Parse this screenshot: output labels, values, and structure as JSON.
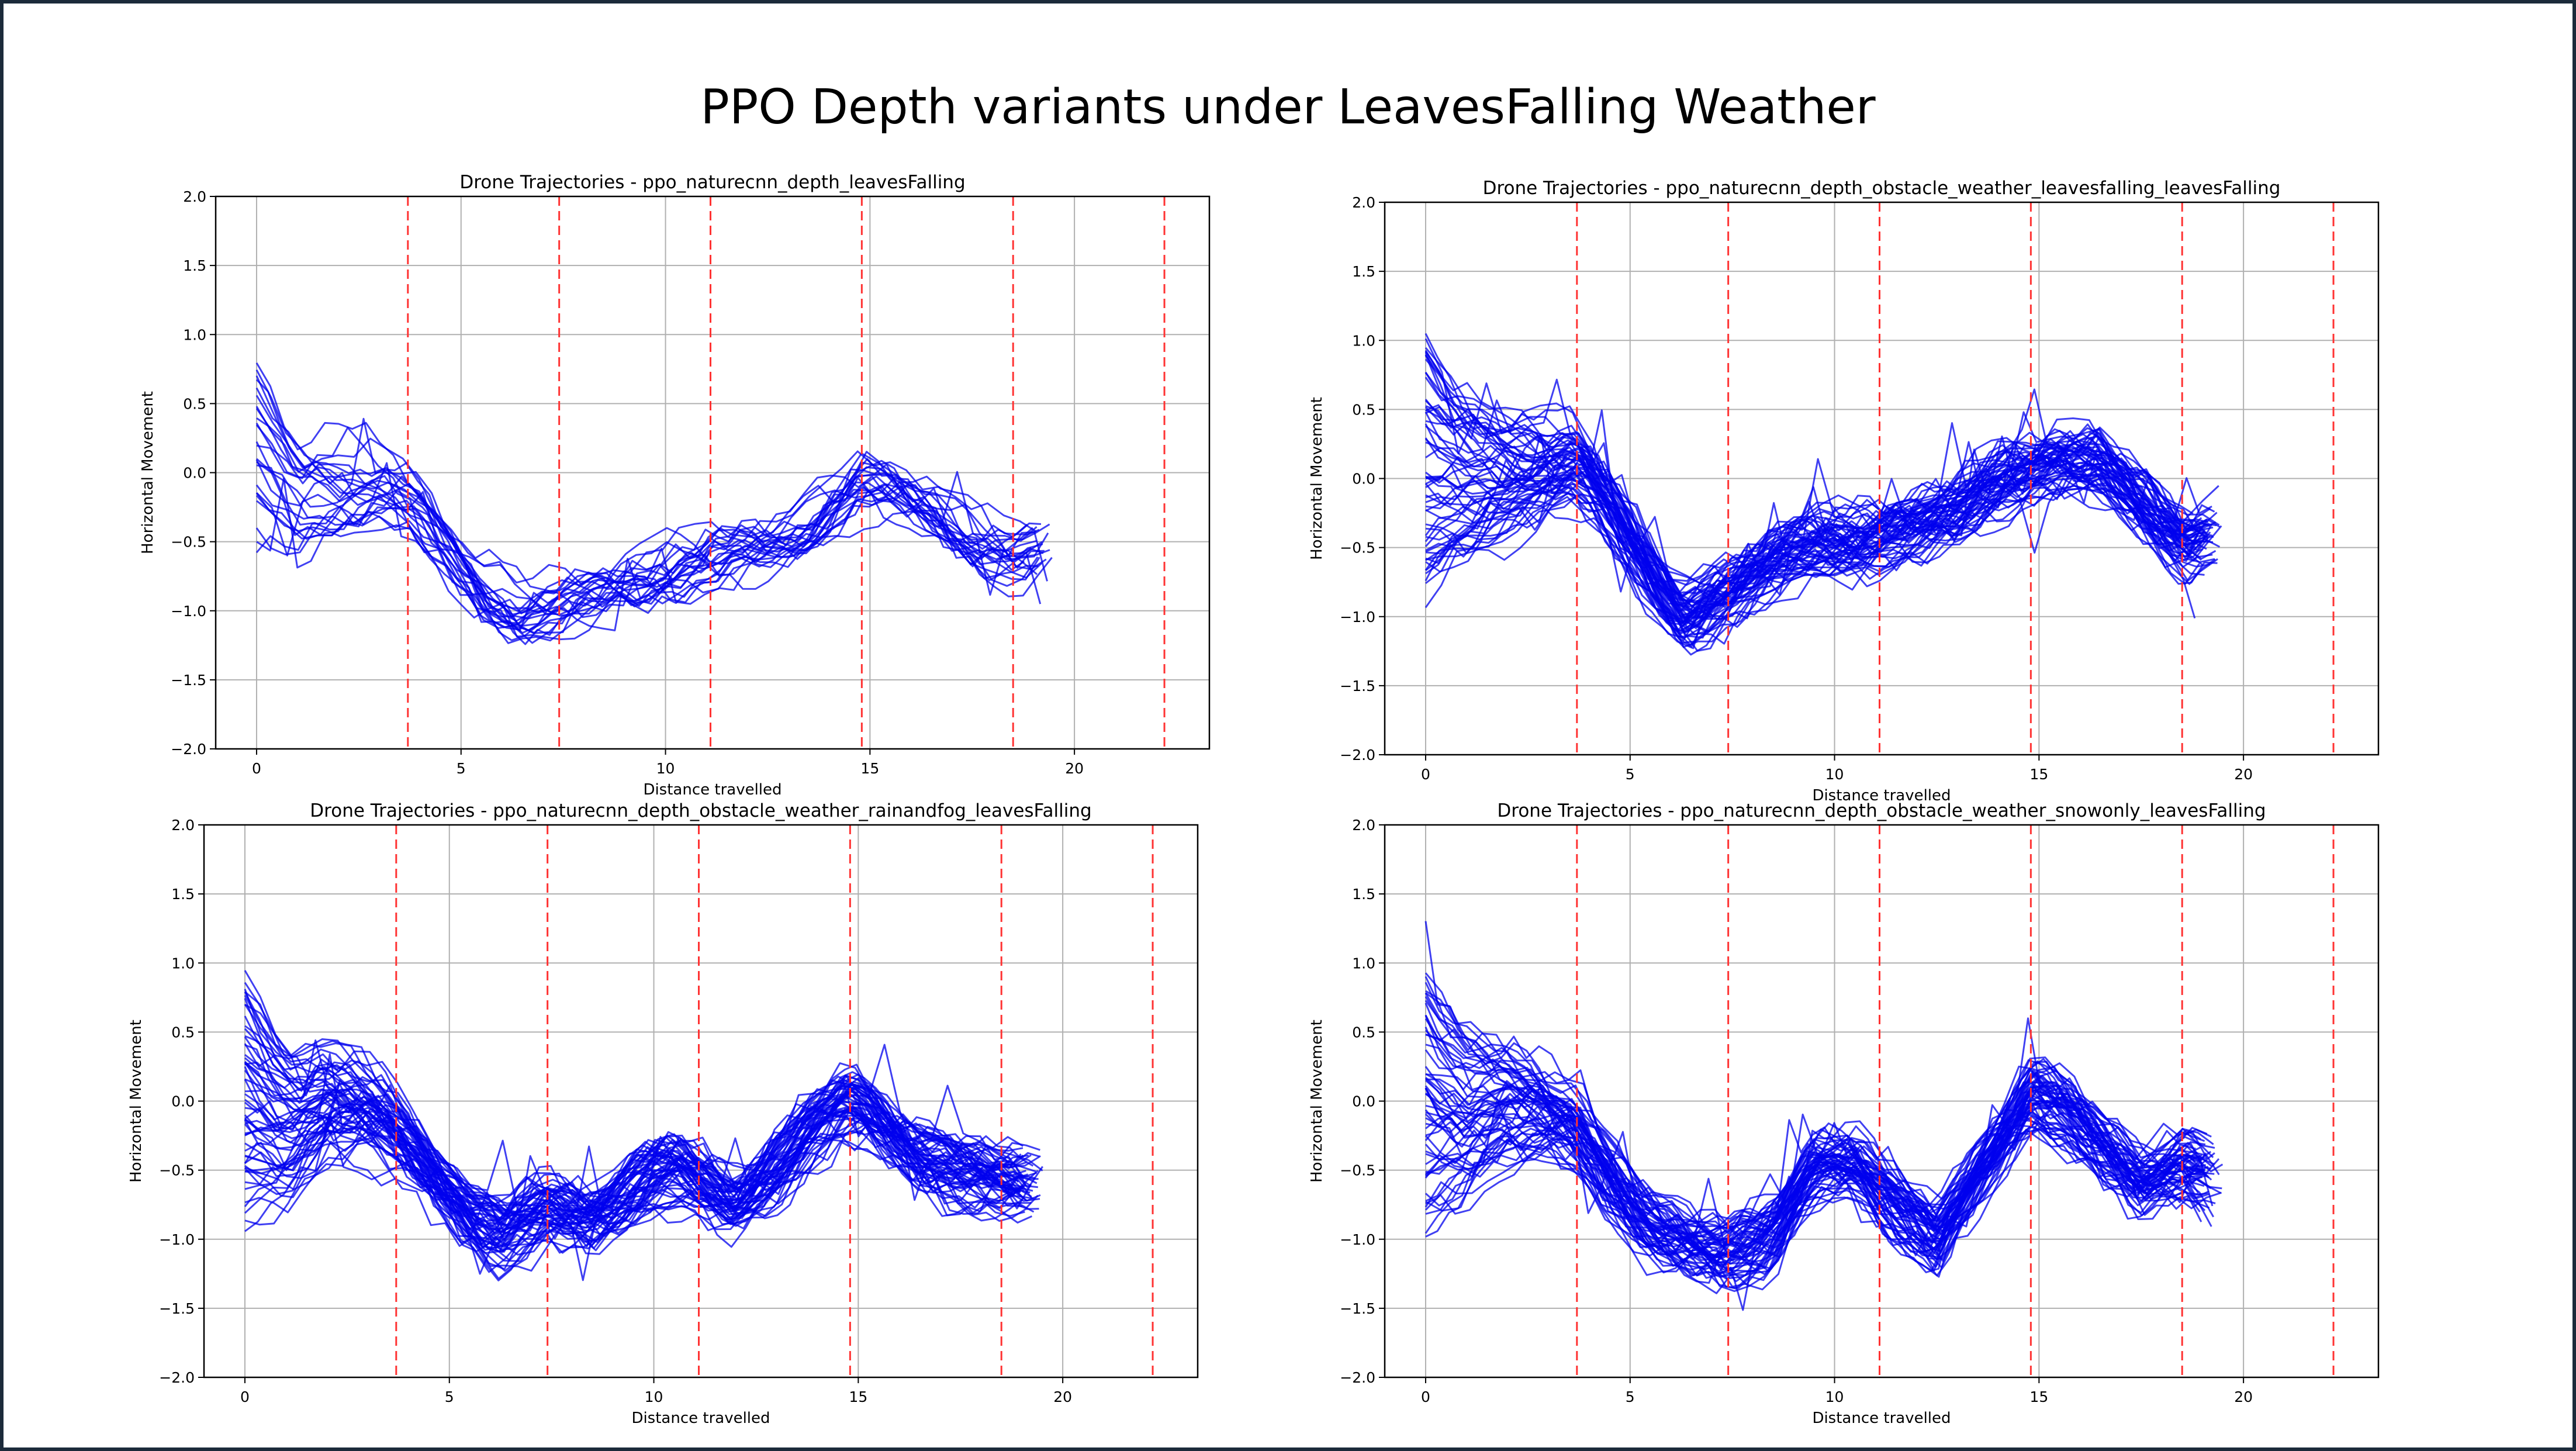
{
  "slide": {
    "title": "PPO Depth variants under LeavesFalling Weather",
    "series_color": "#0000ee",
    "marker_color": "#ff3333",
    "frame_color": "#1b2a3a"
  },
  "chart_data": [
    {
      "type": "line",
      "title": "Drone Trajectories - ppo_naturecnn_depth_leavesFalling",
      "xlabel": "Distance travelled",
      "ylabel": "Horizontal Movement",
      "xlim": [
        -1,
        23.3
      ],
      "ylim": [
        -2.0,
        2.0
      ],
      "xticks": [
        0,
        5,
        10,
        15,
        20
      ],
      "yticks": [
        -2.0,
        -1.5,
        -1.0,
        -0.5,
        0.0,
        0.5,
        1.0,
        1.5,
        2.0
      ],
      "xtick_labels": [
        "0",
        "5",
        "10",
        "15",
        "20"
      ],
      "ytick_labels": [
        "−2.0",
        "−1.5",
        "−1.0",
        "−0.5",
        "0.0",
        "0.5",
        "1.0",
        "1.5",
        "2.0"
      ],
      "grid": true,
      "vlines": [
        3.7,
        7.4,
        11.1,
        14.8,
        18.5,
        22.2
      ],
      "trajectory_count": 25,
      "x_end": 19.6,
      "mean_path": {
        "x": [
          0,
          1,
          2,
          3,
          3.7,
          4.5,
          5.5,
          6.5,
          7.4,
          8.5,
          9.5,
          10.5,
          11.1,
          12,
          13,
          14,
          14.8,
          15.5,
          16.5,
          17.5,
          18.5,
          19.6
        ],
        "y": [
          0.1,
          -0.25,
          -0.15,
          -0.1,
          -0.2,
          -0.5,
          -0.85,
          -1.0,
          -0.95,
          -0.85,
          -0.75,
          -0.65,
          -0.6,
          -0.55,
          -0.45,
          -0.25,
          -0.05,
          -0.1,
          -0.25,
          -0.45,
          -0.6,
          -0.5
        ]
      }
    },
    {
      "type": "line",
      "title": "Drone Trajectories - ppo_naturecnn_depth_obstacle_weather_leavesfalling_leavesFalling",
      "xlabel": "Distance travelled",
      "ylabel": "Horizontal Movement",
      "xlim": [
        -1,
        23.3
      ],
      "ylim": [
        -2.0,
        2.0
      ],
      "xticks": [
        0,
        5,
        10,
        15,
        20
      ],
      "yticks": [
        -2.0,
        -1.5,
        -1.0,
        -0.5,
        0.0,
        0.5,
        1.0,
        1.5,
        2.0
      ],
      "xtick_labels": [
        "0",
        "5",
        "10",
        "15",
        "20"
      ],
      "ytick_labels": [
        "−2.0",
        "−1.5",
        "−1.0",
        "−0.5",
        "0.0",
        "0.5",
        "1.0",
        "1.5",
        "2.0"
      ],
      "grid": true,
      "vlines": [
        3.7,
        7.4,
        11.1,
        14.8,
        18.5,
        22.2
      ],
      "trajectory_count": 60,
      "x_end": 19.6,
      "mean_path": {
        "x": [
          0,
          1,
          2,
          3,
          3.7,
          4.5,
          5.5,
          6.3,
          7.4,
          8.5,
          9.5,
          10.5,
          11.1,
          12,
          13,
          14,
          14.8,
          15.5,
          16.5,
          17.5,
          18.5,
          19.6
        ],
        "y": [
          0.1,
          0.0,
          0.0,
          0.05,
          0.1,
          -0.2,
          -0.7,
          -1.05,
          -0.85,
          -0.6,
          -0.5,
          -0.5,
          -0.45,
          -0.35,
          -0.25,
          -0.05,
          0.05,
          0.1,
          0.1,
          -0.2,
          -0.5,
          -0.4
        ]
      }
    },
    {
      "type": "line",
      "title": "Drone Trajectories - ppo_naturecnn_depth_obstacle_weather_rainandfog_leavesFalling",
      "xlabel": "Distance travelled",
      "ylabel": "Horizontal Movement",
      "xlim": [
        -1,
        23.3
      ],
      "ylim": [
        -2.0,
        2.0
      ],
      "xticks": [
        0,
        5,
        10,
        15,
        20
      ],
      "yticks": [
        -2.0,
        -1.5,
        -1.0,
        -0.5,
        0.0,
        0.5,
        1.0,
        1.5,
        2.0
      ],
      "xtick_labels": [
        "0",
        "5",
        "10",
        "15",
        "20"
      ],
      "ytick_labels": [
        "−2.0",
        "−1.5",
        "−1.0",
        "−0.5",
        "0.0",
        "0.5",
        "1.0",
        "1.5",
        "2.0"
      ],
      "grid": true,
      "vlines": [
        3.7,
        7.4,
        11.1,
        14.8,
        18.5,
        22.2
      ],
      "trajectory_count": 60,
      "x_end": 19.6,
      "mean_path": {
        "x": [
          0,
          1,
          2,
          3,
          3.7,
          4.5,
          5.5,
          6.3,
          7.4,
          8.5,
          9.5,
          10.5,
          11.1,
          12,
          13,
          14,
          14.8,
          15.5,
          16.5,
          17.5,
          18.5,
          19.6
        ],
        "y": [
          0.0,
          -0.2,
          -0.05,
          -0.1,
          -0.25,
          -0.5,
          -0.85,
          -1.0,
          -0.8,
          -0.85,
          -0.65,
          -0.5,
          -0.6,
          -0.75,
          -0.5,
          -0.2,
          0.0,
          -0.15,
          -0.4,
          -0.55,
          -0.6,
          -0.6
        ]
      }
    },
    {
      "type": "line",
      "title": "Drone Trajectories - ppo_naturecnn_depth_obstacle_weather_snowonly_leavesFalling",
      "xlabel": "Distance travelled",
      "ylabel": "Horizontal Movement",
      "xlim": [
        -1,
        23.3
      ],
      "ylim": [
        -2.0,
        2.0
      ],
      "xticks": [
        0,
        5,
        10,
        15,
        20
      ],
      "yticks": [
        -2.0,
        -1.5,
        -1.0,
        -0.5,
        0.0,
        0.5,
        1.0,
        1.5,
        2.0
      ],
      "xtick_labels": [
        "0",
        "5",
        "10",
        "15",
        "20"
      ],
      "ytick_labels": [
        "−2.0",
        "−1.5",
        "−1.0",
        "−0.5",
        "0.0",
        "0.5",
        "1.0",
        "1.5",
        "2.0"
      ],
      "grid": true,
      "vlines": [
        3.7,
        7.4,
        11.1,
        14.8,
        18.5,
        22.2
      ],
      "trajectory_count": 60,
      "x_end": 19.6,
      "mean_path": {
        "x": [
          0,
          1,
          2,
          3,
          3.7,
          4.5,
          5.5,
          6.5,
          7.4,
          8.5,
          9.5,
          10.5,
          11.1,
          12,
          12.5,
          13.5,
          14.8,
          15.5,
          16.5,
          17.5,
          18.5,
          19.6
        ],
        "y": [
          0.0,
          -0.15,
          -0.05,
          -0.1,
          -0.2,
          -0.6,
          -0.95,
          -1.05,
          -1.1,
          -1.0,
          -0.5,
          -0.45,
          -0.65,
          -0.9,
          -1.05,
          -0.55,
          0.05,
          -0.05,
          -0.35,
          -0.6,
          -0.45,
          -0.6
        ]
      }
    }
  ]
}
